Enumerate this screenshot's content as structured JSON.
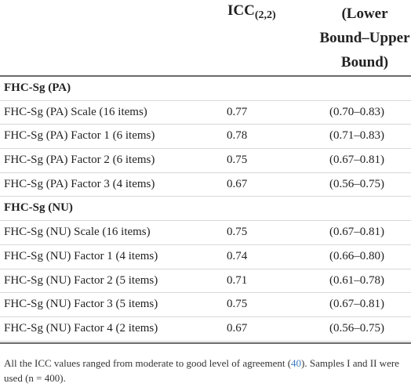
{
  "header": {
    "icc_label": "ICC",
    "icc_subscript": "(2,2)",
    "bound_line1": "(Lower",
    "bound_line2": "Bound–Upper",
    "bound_line3": "Bound)"
  },
  "rows": [
    {
      "type": "section",
      "label": "FHC-Sg (PA)",
      "icc": "",
      "ci": ""
    },
    {
      "type": "data",
      "label": "FHC-Sg (PA) Scale (16 items)",
      "icc": "0.77",
      "ci": "(0.70–0.83)"
    },
    {
      "type": "data",
      "label": "FHC-Sg (PA) Factor 1 (6 items)",
      "icc": "0.78",
      "ci": "(0.71–0.83)"
    },
    {
      "type": "data",
      "label": "FHC-Sg (PA) Factor 2 (6 items)",
      "icc": "0.75",
      "ci": "(0.67–0.81)"
    },
    {
      "type": "data",
      "label": "FHC-Sg (PA) Factor 3 (4 items)",
      "icc": "0.67",
      "ci": "(0.56–0.75)"
    },
    {
      "type": "section",
      "label": "FHC-Sg (NU)",
      "icc": "",
      "ci": ""
    },
    {
      "type": "data",
      "label": "FHC-Sg (NU) Scale (16 items)",
      "icc": "0.75",
      "ci": "(0.67–0.81)"
    },
    {
      "type": "data",
      "label": "FHC-Sg (NU) Factor 1 (4 items)",
      "icc": "0.74",
      "ci": "(0.66–0.80)"
    },
    {
      "type": "data",
      "label": "FHC-Sg (NU) Factor 2 (5 items)",
      "icc": "0.71",
      "ci": "(0.61–0.78)"
    },
    {
      "type": "data",
      "label": "FHC-Sg (NU) Factor 3 (5 items)",
      "icc": "0.75",
      "ci": "(0.67–0.81)"
    },
    {
      "type": "data",
      "label": "FHC-Sg (NU) Factor 4 (2 items)",
      "icc": "0.67",
      "ci": "(0.56–0.75)"
    }
  ],
  "note": {
    "text_before": "All the ICC values ranged from moderate to good level of agreement (",
    "reference": "40",
    "text_after": "). Samples I and II were used (n = 400)."
  },
  "colors": {
    "text": "#222222",
    "rule": "#6a6a6a",
    "row_divider": "#d8d8d8",
    "link": "#3b7bbf"
  }
}
